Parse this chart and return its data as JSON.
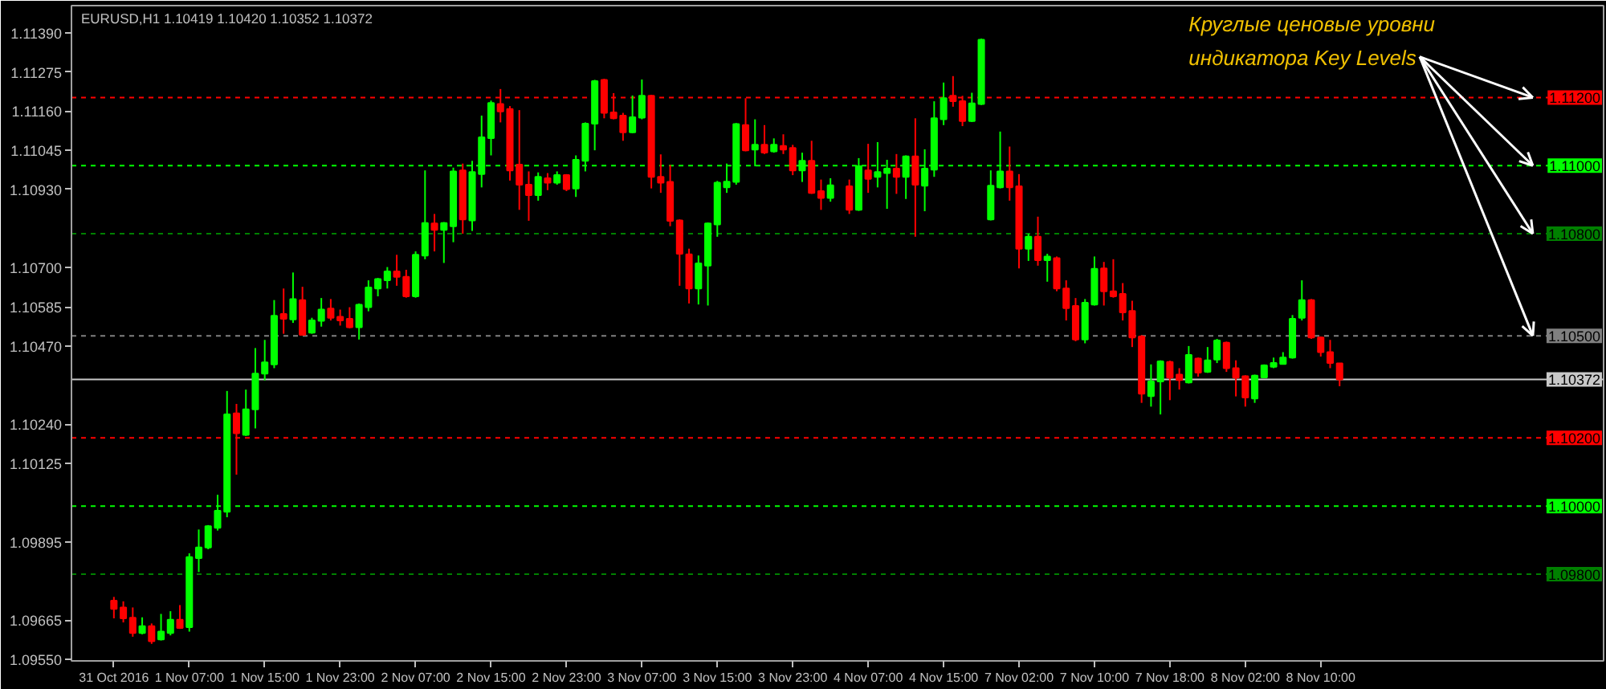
{
  "chart_data": {
    "type": "candlestick",
    "title": "EURUSD,H1 1.10419 1.10420 1.10352 1.10372",
    "categories": [
      "31 Oct 2016",
      null,
      null,
      null,
      null,
      null,
      null,
      null,
      "1 Nov 07:00",
      null,
      null,
      null,
      null,
      null,
      null,
      null,
      "1 Nov 15:00",
      null,
      null,
      null,
      null,
      null,
      null,
      null,
      "1 Nov 23:00",
      null,
      null,
      null,
      null,
      null,
      null,
      null,
      "2 Nov 07:00",
      null,
      null,
      null,
      null,
      null,
      null,
      null,
      "2 Nov 15:00",
      null,
      null,
      null,
      null,
      null,
      null,
      null,
      "2 Nov 23:00",
      null,
      null,
      null,
      null,
      null,
      null,
      null,
      "3 Nov 07:00",
      null,
      null,
      null,
      null,
      null,
      null,
      null,
      "3 Nov 15:00",
      null,
      null,
      null,
      null,
      null,
      null,
      null,
      "3 Nov 23:00",
      null,
      null,
      null,
      null,
      null,
      null,
      null,
      "4 Nov 07:00",
      null,
      null,
      null,
      null,
      null,
      null,
      null,
      "4 Nov 15:00",
      null,
      null,
      null,
      null,
      null,
      null,
      null,
      "7 Nov 02:00",
      null,
      null,
      null,
      null,
      null,
      null,
      null,
      "7 Nov 10:00",
      null,
      null,
      null,
      null,
      null,
      null,
      null,
      "7 Nov 18:00",
      null,
      null,
      null,
      null,
      null,
      null,
      null,
      "8 Nov 02:00",
      null,
      null,
      null,
      null,
      null,
      null,
      null,
      "8 Nov 10:00",
      null,
      null
    ],
    "ohlc": [
      [
        1.09722,
        1.09733,
        1.0967,
        1.09698
      ],
      [
        1.09702,
        1.0972,
        1.09658,
        1.0967
      ],
      [
        1.09672,
        1.09702,
        1.09616,
        1.09627
      ],
      [
        1.09627,
        1.09673,
        1.09623,
        1.09647
      ],
      [
        1.09647,
        1.09655,
        1.09595,
        1.09603
      ],
      [
        1.09608,
        1.09683,
        1.09605,
        1.09631
      ],
      [
        1.09627,
        1.09691,
        1.0962,
        1.09666
      ],
      [
        1.09666,
        1.09709,
        1.09639,
        1.09642
      ],
      [
        1.09644,
        1.09861,
        1.09631,
        1.0985
      ],
      [
        1.09847,
        1.09931,
        1.09806,
        1.09878
      ],
      [
        1.09878,
        1.09944,
        1.09873,
        1.09941
      ],
      [
        1.09936,
        1.10033,
        1.09928,
        1.09986
      ],
      [
        1.09983,
        1.10338,
        1.09967,
        1.10269
      ],
      [
        1.10272,
        1.103,
        1.10092,
        1.10214
      ],
      [
        1.10209,
        1.10342,
        1.10206,
        1.10284
      ],
      [
        1.10284,
        1.10464,
        1.10228,
        1.10389
      ],
      [
        1.10389,
        1.10488,
        1.10369,
        1.10422
      ],
      [
        1.10416,
        1.10605,
        1.10405,
        1.10559
      ],
      [
        1.10564,
        1.10639,
        1.10506,
        1.1055
      ],
      [
        1.10548,
        1.10686,
        1.10538,
        1.10608
      ],
      [
        1.10605,
        1.10644,
        1.10502,
        1.10503
      ],
      [
        1.10509,
        1.10553,
        1.10506,
        1.10545
      ],
      [
        1.10544,
        1.10611,
        1.10527,
        1.10577
      ],
      [
        1.1058,
        1.10608,
        1.10545,
        1.10553
      ],
      [
        1.10556,
        1.10577,
        1.1053,
        1.10545
      ],
      [
        1.1055,
        1.10584,
        1.10522,
        1.10525
      ],
      [
        1.10525,
        1.10595,
        1.10489,
        1.10591
      ],
      [
        1.10584,
        1.10663,
        1.10572,
        1.10642
      ],
      [
        1.10639,
        1.1067,
        1.10616,
        1.10667
      ],
      [
        1.10663,
        1.10702,
        1.10639,
        1.10689
      ],
      [
        1.10689,
        1.10738,
        1.10647,
        1.10673
      ],
      [
        1.10673,
        1.10694,
        1.10612,
        1.10616
      ],
      [
        1.10616,
        1.10748,
        1.10612,
        1.10738
      ],
      [
        1.10736,
        1.10986,
        1.10725,
        1.10831
      ],
      [
        1.1083,
        1.10858,
        1.10748,
        1.10811
      ],
      [
        1.10811,
        1.10834,
        1.10714,
        1.10831
      ],
      [
        1.10822,
        1.10994,
        1.10775,
        1.10983
      ],
      [
        1.10986,
        1.11006,
        1.108,
        1.10842
      ],
      [
        1.10839,
        1.11014,
        1.10808,
        1.10981
      ],
      [
        1.10975,
        1.11147,
        1.10936,
        1.11083
      ],
      [
        1.11081,
        1.11191,
        1.1103,
        1.11184
      ],
      [
        1.11181,
        1.11225,
        1.11127,
        1.11159
      ],
      [
        1.11166,
        1.11175,
        1.10956,
        1.10986
      ],
      [
        1.11003,
        1.11163,
        1.1087,
        1.10944
      ],
      [
        1.10944,
        1.10983,
        1.10838,
        1.10913
      ],
      [
        1.10913,
        1.1098,
        1.10897,
        1.10967
      ],
      [
        1.10963,
        1.10978,
        1.10928,
        1.1095
      ],
      [
        1.1095,
        1.10983,
        1.10944,
        1.10972
      ],
      [
        1.10972,
        1.10975,
        1.10925,
        1.10931
      ],
      [
        1.10933,
        1.1103,
        1.10908,
        1.11017
      ],
      [
        1.11014,
        1.11127,
        1.10983,
        1.11123
      ],
      [
        1.11123,
        1.11252,
        1.11045,
        1.11248
      ],
      [
        1.11252,
        1.11255,
        1.11139,
        1.11155
      ],
      [
        1.11156,
        1.11213,
        1.11136,
        1.11139
      ],
      [
        1.11147,
        1.11155,
        1.11073,
        1.11098
      ],
      [
        1.11098,
        1.11206,
        1.11095,
        1.11142
      ],
      [
        1.11141,
        1.11253,
        1.11136,
        1.11205
      ],
      [
        1.11205,
        1.11208,
        1.10933,
        1.10967
      ],
      [
        1.10967,
        1.11033,
        1.1092,
        1.1095
      ],
      [
        1.10952,
        1.11002,
        1.10822,
        1.10838
      ],
      [
        1.10839,
        1.10842,
        1.10647,
        1.10741
      ],
      [
        1.10739,
        1.10756,
        1.10595,
        1.10639
      ],
      [
        1.10639,
        1.10736,
        1.10592,
        1.10713
      ],
      [
        1.10706,
        1.10833,
        1.10589,
        1.1083
      ],
      [
        1.10827,
        1.10955,
        1.10791,
        1.1095
      ],
      [
        1.10936,
        1.11006,
        1.1092,
        1.10953
      ],
      [
        1.10952,
        1.11125,
        1.10944,
        1.11122
      ],
      [
        1.11119,
        1.11198,
        1.11042,
        1.11045
      ],
      [
        1.11047,
        1.11136,
        1.10998,
        1.11061
      ],
      [
        1.11061,
        1.11119,
        1.11034,
        1.11038
      ],
      [
        1.11042,
        1.1108,
        1.11038,
        1.11061
      ],
      [
        1.11058,
        1.11092,
        1.11034,
        1.11047
      ],
      [
        1.11052,
        1.11061,
        1.10972,
        1.10986
      ],
      [
        1.10986,
        1.11038,
        1.10952,
        1.11014
      ],
      [
        1.11014,
        1.11073,
        1.10917,
        1.1092
      ],
      [
        1.10925,
        1.10959,
        1.1087,
        1.10905
      ],
      [
        1.10905,
        1.10963,
        1.10894,
        1.10942
      ],
      null,
      [
        1.10939,
        1.10959,
        1.10858,
        1.1087
      ],
      [
        1.1087,
        1.11022,
        1.10867,
        1.10998
      ],
      [
        1.10986,
        1.11064,
        1.1092,
        1.10961
      ],
      [
        1.10967,
        1.11069,
        1.10936,
        1.10981
      ],
      [
        1.10978,
        1.11017,
        1.10873,
        1.10991
      ],
      [
        1.10991,
        1.11034,
        1.10917,
        1.10967
      ],
      [
        1.10967,
        1.1103,
        1.10902,
        1.11027
      ],
      [
        1.11027,
        1.11139,
        1.10791,
        1.10944
      ],
      [
        1.10941,
        1.11048,
        1.10866,
        1.10991
      ],
      [
        1.10988,
        1.11189,
        1.10967,
        1.11139
      ],
      [
        1.11136,
        1.11244,
        1.11119,
        1.11198
      ],
      [
        1.11205,
        1.11263,
        1.11173,
        1.11189
      ],
      [
        1.11189,
        1.11205,
        1.11116,
        1.11131
      ],
      [
        1.11131,
        1.11214,
        1.11128,
        1.11183
      ],
      [
        1.11181,
        1.11373,
        1.11178,
        1.1137
      ],
      [
        1.10842,
        1.10986,
        1.10839,
        1.10941
      ],
      [
        1.10936,
        1.111,
        1.10933,
        1.10983
      ],
      [
        1.10983,
        1.11056,
        1.10897,
        1.10936
      ],
      [
        1.10939,
        1.10975,
        1.10698,
        1.10756
      ],
      [
        1.10756,
        1.108,
        1.1072,
        1.10791
      ],
      [
        1.10791,
        1.1085,
        1.10706,
        1.10722
      ],
      [
        1.10722,
        1.10741,
        1.10659,
        1.10733
      ],
      [
        1.10728,
        1.10733,
        1.10631,
        1.10639
      ],
      [
        1.10639,
        1.10663,
        1.10545,
        1.10581
      ],
      [
        1.10588,
        1.10611,
        1.10484,
        1.10489
      ],
      [
        1.10489,
        1.10608,
        1.10478,
        1.10597
      ],
      [
        1.10592,
        1.10733,
        1.10589,
        1.10697
      ],
      [
        1.10698,
        1.10717,
        1.10589,
        1.10631
      ],
      [
        1.10631,
        1.10725,
        1.10612,
        1.10616
      ],
      [
        1.10623,
        1.10655,
        1.10545,
        1.10569
      ],
      [
        1.10573,
        1.10603,
        1.10467,
        1.10495
      ],
      [
        1.10498,
        1.10502,
        1.10303,
        1.1033
      ],
      [
        1.10323,
        1.10416,
        1.10292,
        1.10366
      ],
      [
        1.10366,
        1.10428,
        1.10269,
        1.10425
      ],
      [
        1.10423,
        1.10427,
        1.10311,
        1.10377
      ],
      [
        1.10386,
        1.10405,
        1.10342,
        1.1037
      ],
      [
        1.10363,
        1.1047,
        1.1036,
        1.10444
      ],
      [
        1.10433,
        1.10436,
        1.1038,
        1.10392
      ],
      [
        1.10394,
        1.10467,
        1.10391,
        1.10428
      ],
      [
        1.1043,
        1.10491,
        1.1042,
        1.10486
      ],
      [
        1.1048,
        1.10483,
        1.10394,
        1.10405
      ],
      [
        1.10405,
        1.10428,
        1.10322,
        1.10377
      ],
      [
        1.10381,
        1.10384,
        1.10292,
        1.10319
      ],
      [
        1.10316,
        1.10386,
        1.10303,
        1.10383
      ],
      [
        1.10378,
        1.10416,
        1.10377,
        1.10413
      ],
      [
        1.10409,
        1.10436,
        1.10405,
        1.1042
      ],
      [
        1.10417,
        1.10452,
        1.10416,
        1.10436
      ],
      [
        1.10436,
        1.10561,
        1.10433,
        1.1055
      ],
      [
        1.10553,
        1.10663,
        1.10545,
        1.10605
      ],
      [
        1.10605,
        1.10608,
        1.10491,
        1.10495
      ],
      [
        1.10495,
        1.10498,
        1.10439,
        1.10452
      ],
      [
        1.10452,
        1.10488,
        1.10405,
        1.1042
      ],
      [
        1.10419,
        1.1042,
        1.10352,
        1.10372
      ]
    ],
    "colors": [
      "#ff0000",
      "#ff0000",
      "#ff0000",
      "#00ff00",
      "#ff0000",
      "#00ff00",
      "#00ff00",
      "#ff0000",
      "#00ff00",
      "#00ff00",
      "#00ff00",
      "#00ff00",
      "#00ff00",
      "#ff0000",
      "#00ff00",
      "#00ff00",
      "#00ff00",
      "#00ff00",
      "#ff0000",
      "#00ff00",
      "#ff0000",
      "#00ff00",
      "#00ff00",
      "#ff0000",
      "#ff0000",
      "#ff0000",
      "#00ff00",
      "#00ff00",
      "#00ff00",
      "#00ff00",
      "#ff0000",
      "#ff0000",
      "#00ff00",
      "#00ff00",
      "#ff0000",
      "#00ff00",
      "#00ff00",
      "#ff0000",
      "#00ff00",
      "#00ff00",
      "#00ff00",
      "#ff0000",
      "#ff0000",
      "#ff0000",
      "#ff0000",
      "#00ff00",
      "#ff0000",
      "#00ff00",
      "#ff0000",
      "#00ff00",
      "#00ff00",
      "#00ff00",
      "#ff0000",
      "#ff0000",
      "#ff0000",
      "#00ff00",
      "#00ff00",
      "#ff0000",
      "#ff0000",
      "#ff0000",
      "#ff0000",
      "#ff0000",
      "#00ff00",
      "#00ff00",
      "#00ff00",
      "#00ff00",
      "#00ff00",
      "#ff0000",
      "#00ff00",
      "#ff0000",
      "#00ff00",
      "#ff0000",
      "#ff0000",
      "#00ff00",
      "#ff0000",
      "#ff0000",
      "#00ff00",
      null,
      "#ff0000",
      "#00ff00",
      "#ff0000",
      "#00ff00",
      "#00ff00",
      "#ff0000",
      "#00ff00",
      "#ff0000",
      "#00ff00",
      "#00ff00",
      "#00ff00",
      "#ff0000",
      "#ff0000",
      "#00ff00",
      "#00ff00",
      "#00ff00",
      "#00ff00",
      "#ff0000",
      "#ff0000",
      "#00ff00",
      "#ff0000",
      "#00ff00",
      "#ff0000",
      "#ff0000",
      "#ff0000",
      "#00ff00",
      "#00ff00",
      "#ff0000",
      "#ff0000",
      "#ff0000",
      "#ff0000",
      "#ff0000",
      "#00ff00",
      "#00ff00",
      "#ff0000",
      "#ff0000",
      "#00ff00",
      "#ff0000",
      "#00ff00",
      "#00ff00",
      "#ff0000",
      "#ff0000",
      "#ff0000",
      "#00ff00",
      "#00ff00",
      "#00ff00",
      "#00ff00",
      "#00ff00",
      "#00ff00",
      "#ff0000",
      "#ff0000",
      "#ff0000",
      "#ff0000"
    ],
    "ylim": [
      1.09545,
      1.1147
    ],
    "yticks": [
      {
        "value": 1.1139,
        "label": "1.11390"
      },
      {
        "value": 1.11275,
        "label": "1.11275"
      },
      {
        "value": 1.1116,
        "label": "1.11160"
      },
      {
        "value": 1.11045,
        "label": "1.11045"
      },
      {
        "value": 1.1093,
        "label": "1.10930"
      },
      {
        "value": 1.107,
        "label": "1.10700"
      },
      {
        "value": 1.10585,
        "label": "1.10585"
      },
      {
        "value": 1.1047,
        "label": "1.10470"
      },
      {
        "value": 1.1024,
        "label": "1.10240"
      },
      {
        "value": 1.10125,
        "label": "1.10125"
      },
      {
        "value": 1.09895,
        "label": "1.09895"
      },
      {
        "value": 1.09665,
        "label": "1.09665"
      },
      {
        "value": 1.0955,
        "label": "1.09550"
      }
    ],
    "ref_lines": [
      {
        "axis": "y",
        "value": 1.112,
        "label": "1.11200",
        "color": "#ff0000",
        "line_style": "dashed"
      },
      {
        "axis": "y",
        "value": 1.11,
        "label": "1.11000",
        "color": "#00ff00",
        "line_style": "dashed"
      },
      {
        "axis": "y",
        "value": 1.108,
        "label": "1.10800",
        "color": "#008000",
        "line_style": "dashed"
      },
      {
        "axis": "y",
        "value": 1.105,
        "label": "1.10500",
        "color": "#808080",
        "line_style": "dashed"
      },
      {
        "axis": "y",
        "value": 1.10372,
        "label": "1.10372",
        "color": "#c8c8c8",
        "line_style": "solid"
      },
      {
        "axis": "y",
        "value": 1.102,
        "label": "1.10200",
        "color": "#ff0000",
        "line_style": "dashed"
      },
      {
        "axis": "y",
        "value": 1.1,
        "label": "1.10000",
        "color": "#00ff00",
        "line_style": "dashed"
      },
      {
        "axis": "y",
        "value": 1.098,
        "label": "1.09800",
        "color": "#008000",
        "line_style": "dashed"
      }
    ],
    "annotations": [
      "Круглые ценовые уровни\nиндикатора Key Levels"
    ]
  }
}
